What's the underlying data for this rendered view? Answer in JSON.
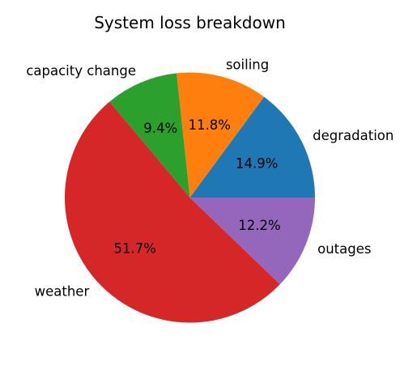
{
  "chart_data": {
    "type": "pie",
    "title": "System loss breakdown",
    "start_angle_deg": 0,
    "direction": "counterclockwise",
    "slices": [
      {
        "label": "degradation",
        "value": 14.9,
        "pct_label": "14.9%",
        "color": "#1f77b4"
      },
      {
        "label": "soiling",
        "value": 11.8,
        "pct_label": "11.8%",
        "color": "#ff7f0e"
      },
      {
        "label": "capacity change",
        "value": 9.4,
        "pct_label": "9.4%",
        "color": "#2ca02c"
      },
      {
        "label": "weather",
        "value": 51.7,
        "pct_label": "51.7%",
        "color": "#d62728"
      },
      {
        "label": "outages",
        "value": 12.2,
        "pct_label": "12.2%",
        "color": "#9467bd"
      }
    ]
  }
}
